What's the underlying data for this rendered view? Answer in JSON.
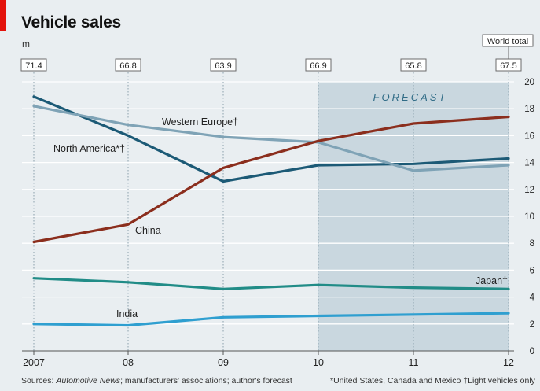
{
  "header": {
    "title": "Vehicle sales",
    "unit": "m"
  },
  "footer": {
    "sources_prefix": "Sources: ",
    "sources_italic": "Automotive News",
    "sources_rest": "; manufacturers' associations; author's forecast",
    "notes": "*United States, Canada and Mexico   †Light vehicles only"
  },
  "colors": {
    "accent": "#e3120b",
    "background": "#e9eef1",
    "forecast_band": "#c9d7df",
    "north_america": "#1c5a76",
    "western_europe": "#7fa3b6",
    "china": "#8b2e1d",
    "japan": "#218c87",
    "india": "#2f9fd0"
  },
  "chart_data": {
    "type": "line",
    "x": [
      "2007",
      "08",
      "09",
      "10",
      "11",
      "12"
    ],
    "ylim": [
      0,
      20
    ],
    "yticks": [
      0,
      2,
      4,
      6,
      8,
      10,
      12,
      14,
      16,
      18,
      20
    ],
    "y_axis_side": "right",
    "grid": true,
    "forecast_label": "FORECAST",
    "forecast_from": "10",
    "forecast_to": "12",
    "world_total_label": "World total",
    "world_totals": [
      "71.4",
      "66.8",
      "63.9",
      "66.9",
      "65.8",
      "67.5"
    ],
    "series": [
      {
        "name": "North America*†",
        "color": "#1c5a76",
        "values": [
          18.9,
          16.0,
          12.6,
          13.8,
          13.9,
          14.3
        ]
      },
      {
        "name": "Western Europe†",
        "color": "#7fa3b6",
        "values": [
          18.2,
          16.8,
          15.9,
          15.5,
          13.4,
          13.8
        ]
      },
      {
        "name": "China",
        "color": "#8b2e1d",
        "values": [
          8.1,
          9.4,
          13.6,
          15.6,
          16.9,
          17.4
        ]
      },
      {
        "name": "Japan†",
        "color": "#218c87",
        "values": [
          5.4,
          5.1,
          4.6,
          4.9,
          4.7,
          4.6
        ]
      },
      {
        "name": "India",
        "color": "#2f9fd0",
        "values": [
          2.0,
          1.9,
          2.5,
          2.6,
          2.7,
          2.8
        ]
      }
    ]
  }
}
